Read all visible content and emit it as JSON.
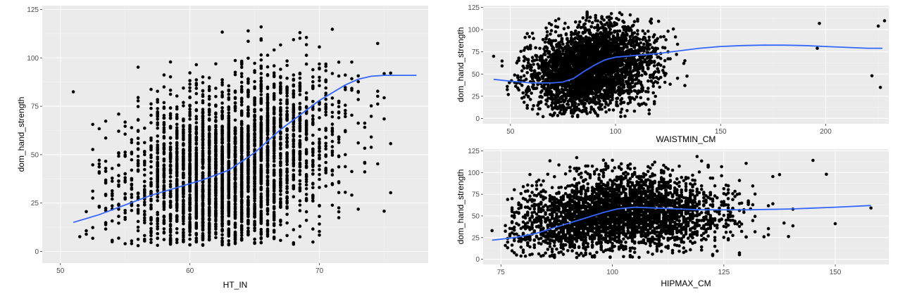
{
  "colors": {
    "panel_bg": "#ebebeb",
    "grid_major": "#ffffff",
    "grid_minor": "#f3f3f3",
    "points": "#000000",
    "smooth": "#3366ff",
    "tick_text": "#4d4d4d"
  },
  "chart_data": [
    {
      "type": "scatter",
      "xlabel": "HT_IN",
      "ylabel": "dom_hand_strength",
      "xlim": [
        48.6,
        78.4
      ],
      "ylim": [
        -6,
        127
      ],
      "xticks": [
        50,
        60,
        70
      ],
      "yticks": [
        0,
        25,
        50,
        75,
        100,
        125
      ],
      "grid": true,
      "cluster": {
        "x_range": [
          51,
          77
        ],
        "y_range": [
          3,
          118
        ],
        "density_center": [
          63,
          40
        ]
      },
      "smooth": {
        "x": [
          51,
          53,
          55,
          57,
          59,
          61,
          63,
          65,
          66,
          67,
          68,
          69,
          70,
          71,
          72,
          73,
          74,
          75,
          76,
          77.5
        ],
        "y": [
          15,
          19,
          24,
          29,
          33,
          37,
          42,
          51,
          57,
          63,
          68,
          73,
          78,
          82,
          86,
          89,
          90.5,
          91,
          91,
          91
        ]
      },
      "outliers": []
    },
    {
      "type": "scatter",
      "xlabel": "WAISTMIN_CM",
      "ylabel": "dom_hand_strength",
      "xlim": [
        37,
        230
      ],
      "ylim": [
        -6,
        127
      ],
      "xticks": [
        50,
        100,
        150,
        200
      ],
      "yticks": [
        0,
        25,
        50,
        75,
        100,
        125
      ],
      "grid": true,
      "cluster": {
        "x_range": [
          45,
          135
        ],
        "y_range": [
          2,
          120
        ],
        "density_center": [
          88,
          55
        ]
      },
      "smooth": {
        "x": [
          42,
          50,
          60,
          70,
          75,
          80,
          85,
          90,
          95,
          100,
          110,
          120,
          130,
          140,
          150,
          160,
          170,
          180,
          190,
          200,
          210,
          220,
          227
        ],
        "y": [
          44,
          42,
          40,
          40,
          41,
          45,
          53,
          60,
          66,
          69,
          71,
          73,
          76,
          79,
          81,
          82,
          82.5,
          82.5,
          82,
          81,
          80,
          79,
          79
        ]
      },
      "outliers": [
        [
          42,
          70
        ],
        [
          196,
          79
        ],
        [
          197,
          107
        ],
        [
          222,
          48
        ],
        [
          225,
          104
        ],
        [
          226,
          35
        ],
        [
          228,
          110
        ]
      ]
    },
    {
      "type": "scatter",
      "xlabel": "HIPMAX_CM",
      "ylabel": "dom_hand_strength",
      "xlim": [
        71,
        162
      ],
      "ylim": [
        -6,
        127
      ],
      "xticks": [
        75,
        100,
        125,
        150
      ],
      "yticks": [
        0,
        25,
        50,
        75,
        100,
        125
      ],
      "grid": true,
      "cluster": {
        "x_range": [
          76,
          152
        ],
        "y_range": [
          2,
          120
        ],
        "density_center": [
          101,
          52
        ]
      },
      "smooth": {
        "x": [
          73,
          78,
          83,
          88,
          93,
          98,
          101,
          105,
          110,
          115,
          120,
          130,
          140,
          150,
          158
        ],
        "y": [
          22,
          25,
          30,
          38,
          46,
          54,
          58,
          60,
          59,
          58,
          57,
          57,
          58,
          60,
          62
        ]
      },
      "outliers": [
        [
          73,
          33
        ],
        [
          145,
          114
        ],
        [
          148,
          98
        ],
        [
          150,
          41
        ],
        [
          158,
          59
        ]
      ]
    }
  ]
}
